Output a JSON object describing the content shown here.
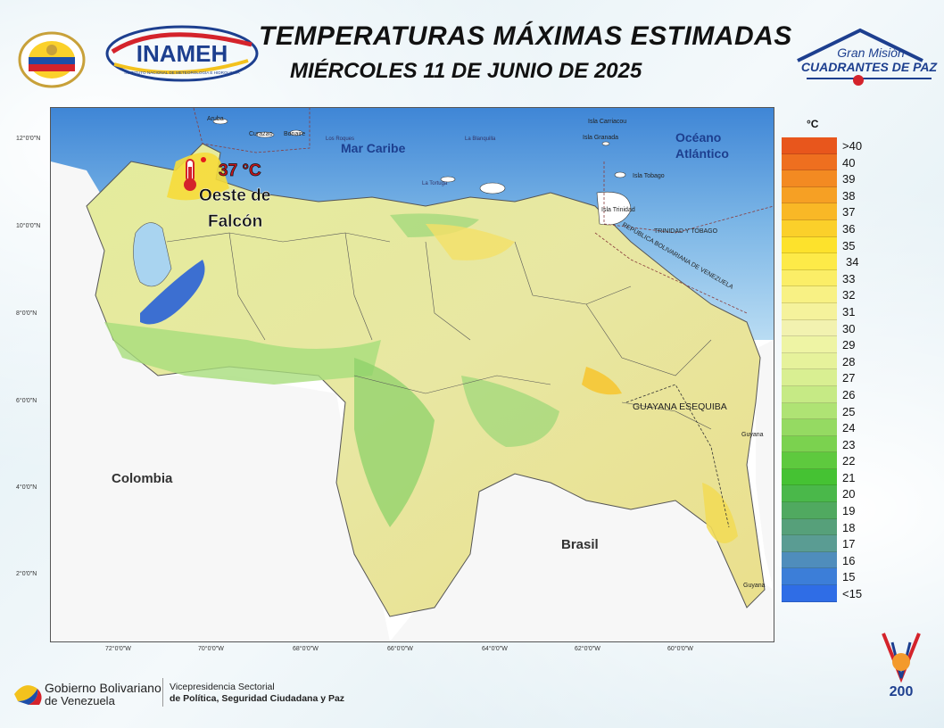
{
  "header": {
    "title": "TEMPERATURAS MÁXIMAS ESTIMADAS",
    "subtitle": "MIÉRCOLES 11 DE JUNIO DE 2025",
    "logo_inameh": "INAMEH",
    "logo_inameh_sub": "INSTITUTO NACIONAL DE METEOROLOGÍA E HIDROLOGÍA",
    "logo_cuadrantes_1": "Gran Misión",
    "logo_cuadrantes_2": "CUADRANTES DE PAZ"
  },
  "map": {
    "labels": {
      "mar_caribe": "Mar Caribe",
      "oceano_1": "Océano",
      "oceano_2": "Atlántico",
      "colombia": "Colombia",
      "brasil": "Brasil",
      "guayana_esequiba": "GUAYANA ESEQUIBA",
      "trinidad_tobago": "TRINIDAD Y TOBAGO",
      "rep_bolivariana": "REPÚBLICA BOLIVARIANA DE VENEZUELA",
      "aruba": "Aruba",
      "curazao": "Curazao",
      "bonaire": "Bonaire",
      "los_roques": "Los Roques",
      "la_blanquilla": "La Blanquilla",
      "la_tortuga": "La Tortuga",
      "carriacou": "Isla Carriacou",
      "granada": "Isla Granada",
      "tobago": "Isla Tobago",
      "trinidad": "Isla Trinidad",
      "guyana_1": "Guyana",
      "guyana_2": "Guyana"
    },
    "highlight": {
      "temperature": "37 °C",
      "location_1": "Oeste de",
      "location_2": "Falcón"
    },
    "lat_labels": [
      "12°0'0\"N",
      "10°0'0\"N",
      "8°0'0\"N",
      "6°0'0\"N",
      "4°0'0\"N",
      "2°0'0\"N"
    ],
    "lon_labels": [
      "72°0'0\"W",
      "70°0'0\"W",
      "68°0'0\"W",
      "66°0'0\"W",
      "64°0'0\"W",
      "62°0'0\"W",
      "60°0'0\"W"
    ]
  },
  "legend": {
    "unit": "°C",
    "items": [
      {
        "label": ">40",
        "color": "#e8561c"
      },
      {
        "label": "40",
        "color": "#ee6f1f"
      },
      {
        "label": "39",
        "color": "#f38a22"
      },
      {
        "label": "38",
        "color": "#f6a024"
      },
      {
        "label": "37",
        "color": "#f9b826"
      },
      {
        "label": "36",
        "color": "#fbd02a"
      },
      {
        "label": "35",
        "color": "#fde22c"
      },
      {
        "label": "34",
        "color": "#fdea48"
      },
      {
        "label": "33",
        "color": "#fbee67"
      },
      {
        "label": "32",
        "color": "#f8f184"
      },
      {
        "label": "31",
        "color": "#f5f29c"
      },
      {
        "label": "30",
        "color": "#f2f2b0"
      },
      {
        "label": "29",
        "color": "#eef4a4"
      },
      {
        "label": "28",
        "color": "#e6f29b"
      },
      {
        "label": "27",
        "color": "#d9ef92"
      },
      {
        "label": "26",
        "color": "#c6ea85"
      },
      {
        "label": "25",
        "color": "#afe374"
      },
      {
        "label": "24",
        "color": "#95da62"
      },
      {
        "label": "23",
        "color": "#7bd24f"
      },
      {
        "label": "22",
        "color": "#5ec93e"
      },
      {
        "label": "21",
        "color": "#45c233"
      },
      {
        "label": "20",
        "color": "#4ab84a"
      },
      {
        "label": "19",
        "color": "#50a960"
      },
      {
        "label": "18",
        "color": "#56a07a"
      },
      {
        "label": "17",
        "color": "#5a9c93"
      },
      {
        "label": "16",
        "color": "#4f8dbc"
      },
      {
        "label": "15",
        "color": "#3c7ed8"
      },
      {
        "label": "<15",
        "color": "#2f6de6"
      }
    ]
  },
  "footer": {
    "gob_1": "Gobierno Bolivariano",
    "gob_2": "de Venezuela",
    "vice_1": "Vicepresidencia Sectorial",
    "vice_2": "de Política, Seguridad Ciudadana y Paz",
    "logo_200": "200"
  }
}
